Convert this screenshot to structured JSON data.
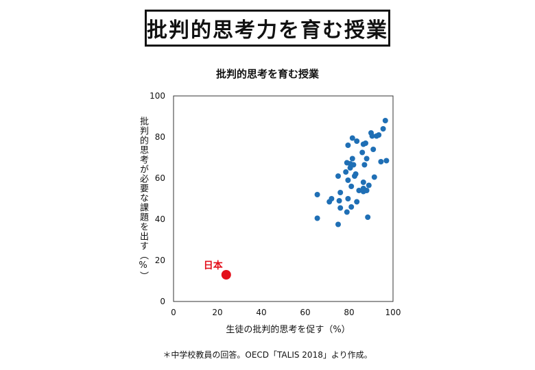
{
  "header": {
    "title": "批判的思考力を育む授業"
  },
  "chart_data": {
    "type": "scatter",
    "title": "批判的思考を育む授業",
    "xlabel": "生徒の批判的思考を促す（%）",
    "ylabel": "批判的思考が必要な課題を出す（%）",
    "xlim": [
      0,
      100
    ],
    "ylim": [
      0,
      100
    ],
    "xticks": [
      "0",
      "20",
      "40",
      "60",
      "80",
      "100"
    ],
    "yticks": [
      "0",
      "20",
      "40",
      "60",
      "80",
      "100"
    ],
    "grid": false,
    "colors": {
      "others": "#1f6fb5",
      "highlight": "#e30f1b"
    },
    "points": [
      [
        65.5,
        52
      ],
      [
        65.5,
        40.5
      ],
      [
        71,
        48.5
      ],
      [
        72,
        50
      ],
      [
        75,
        61
      ],
      [
        75,
        37.5
      ],
      [
        75.5,
        49
      ],
      [
        76,
        53
      ],
      [
        76,
        45.5
      ],
      [
        78.5,
        63
      ],
      [
        79,
        67.5
      ],
      [
        79.5,
        76
      ],
      [
        79.5,
        59
      ],
      [
        79.5,
        50
      ],
      [
        79,
        43.5
      ],
      [
        80.5,
        67
      ],
      [
        80.5,
        65
      ],
      [
        81,
        56
      ],
      [
        81,
        46
      ],
      [
        81.5,
        79.5
      ],
      [
        81.5,
        69.5
      ],
      [
        82,
        66.5
      ],
      [
        82.5,
        61
      ],
      [
        83.5,
        78
      ],
      [
        83,
        62
      ],
      [
        83.5,
        48.5
      ],
      [
        84.5,
        54
      ],
      [
        86,
        72.5
      ],
      [
        86.5,
        76.5
      ],
      [
        86.5,
        58
      ],
      [
        86.5,
        55
      ],
      [
        86.5,
        53.5
      ],
      [
        87,
        66.5
      ],
      [
        87.5,
        77
      ],
      [
        88,
        54
      ],
      [
        88,
        69.5
      ],
      [
        88.5,
        41
      ],
      [
        89,
        56.5
      ],
      [
        90,
        82
      ],
      [
        90.5,
        80.5
      ],
      [
        91,
        74
      ],
      [
        91.5,
        60.5
      ],
      [
        92.5,
        80.5
      ],
      [
        93.5,
        81
      ],
      [
        94.5,
        68
      ],
      [
        95.5,
        84
      ],
      [
        96.5,
        88
      ],
      [
        97,
        68.5
      ]
    ],
    "highlight": {
      "label": "日本",
      "x": 24,
      "y": 13
    }
  },
  "footnote": "＊中学校教員の回答。OECD「TALIS 2018」より作成。"
}
